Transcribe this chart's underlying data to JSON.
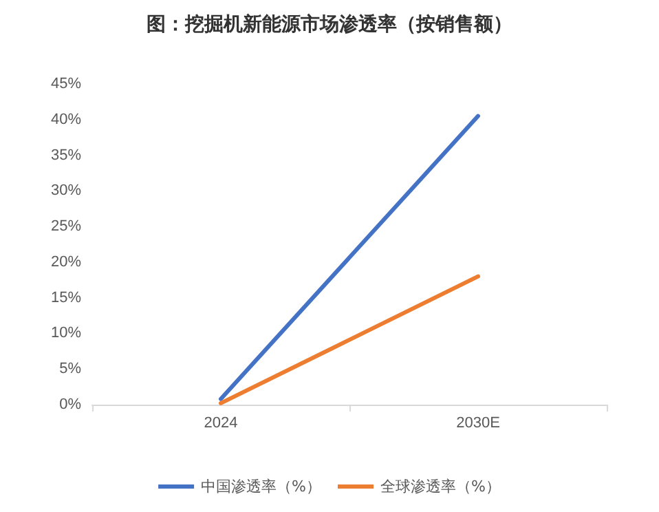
{
  "chart_data": {
    "type": "line",
    "title": "图：挖掘机新能源市场渗透率（按销售额）",
    "categories": [
      "2024",
      "2030E"
    ],
    "series": [
      {
        "name": "中国渗透率（%）",
        "color": "#4472c4",
        "values": [
          0.8,
          40.5
        ]
      },
      {
        "name": "全球渗透率（%）",
        "color": "#ed7d31",
        "values": [
          0.2,
          18
        ]
      }
    ],
    "ylim": [
      0,
      45
    ],
    "yticks": [
      {
        "value": 0,
        "label": "0%"
      },
      {
        "value": 5,
        "label": "5%"
      },
      {
        "value": 10,
        "label": "10%"
      },
      {
        "value": 15,
        "label": "15%"
      },
      {
        "value": 20,
        "label": "20%"
      },
      {
        "value": 25,
        "label": "25%"
      },
      {
        "value": 30,
        "label": "30%"
      },
      {
        "value": 35,
        "label": "35%"
      },
      {
        "value": 40,
        "label": "40%"
      },
      {
        "value": 45,
        "label": "45%"
      }
    ],
    "grid": false,
    "legend": "bottom",
    "marker": "none",
    "line_style": "solid"
  }
}
